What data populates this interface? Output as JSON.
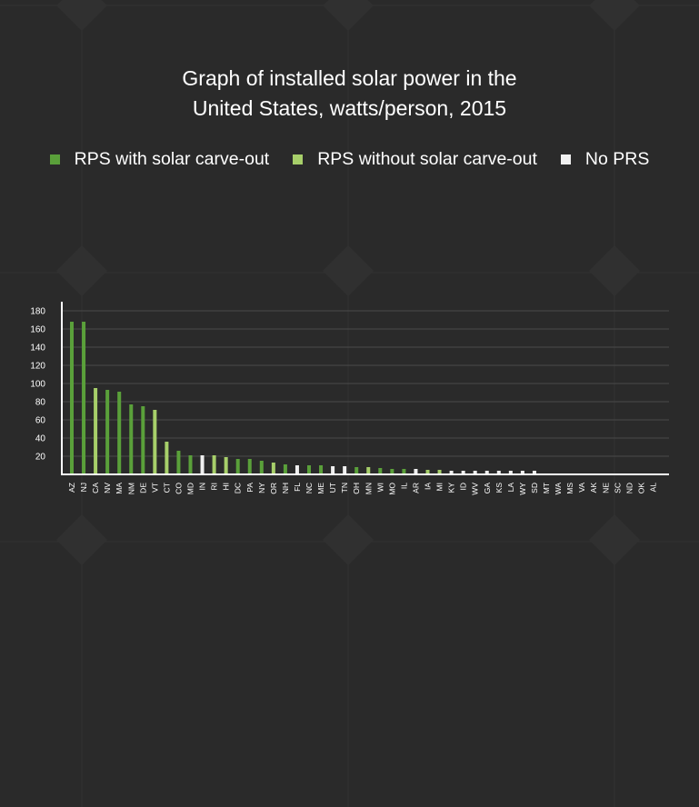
{
  "chart_data": {
    "type": "bar",
    "title_line1": "Graph of installed solar power in the",
    "title_line2": "United States, watts/person, 2015",
    "legend": [
      {
        "label": "RPS with solar carve-out",
        "color": "#5aa03a"
      },
      {
        "label": "RPS without solar carve-out",
        "color": "#a7cf6a"
      },
      {
        "label": "No PRS",
        "color": "#f0f0f0"
      }
    ],
    "xlabel": "",
    "ylabel": "",
    "ylim": [
      0,
      190
    ],
    "yticks": [
      20,
      40,
      60,
      80,
      100,
      120,
      140,
      160,
      180
    ],
    "grid": true,
    "categories": [
      "AZ",
      "NJ",
      "CA",
      "NV",
      "MA",
      "NM",
      "DE",
      "VT",
      "CT",
      "CO",
      "MD",
      "IN",
      "RI",
      "HI",
      "DC",
      "PA",
      "NY",
      "OR",
      "NH",
      "FL",
      "NC",
      "ME",
      "UT",
      "TN",
      "OH",
      "MN",
      "WI",
      "MO",
      "IL",
      "AR",
      "IA",
      "MI",
      "KY",
      "ID",
      "WV",
      "GA",
      "KS",
      "LA",
      "WY",
      "SD",
      "MT",
      "WA",
      "MS",
      "VA",
      "AK",
      "NE",
      "SC",
      "ND",
      "OK",
      "AL"
    ],
    "values": [
      168,
      168,
      95,
      93,
      91,
      77,
      75,
      71,
      36,
      26,
      21,
      21,
      21,
      19,
      17,
      17,
      15,
      13,
      11,
      10,
      10,
      10,
      9,
      9,
      8,
      8,
      7,
      6,
      6,
      6,
      5,
      5,
      4,
      4,
      4,
      4,
      4,
      4,
      4,
      4,
      0,
      0,
      0,
      0,
      0,
      0,
      0,
      0,
      0,
      0
    ],
    "series_group": [
      0,
      0,
      1,
      0,
      0,
      0,
      0,
      1,
      1,
      0,
      0,
      2,
      1,
      1,
      0,
      0,
      0,
      1,
      0,
      2,
      0,
      0,
      2,
      2,
      0,
      1,
      0,
      0,
      0,
      2,
      1,
      1,
      2,
      2,
      2,
      2,
      2,
      2,
      2,
      2,
      2,
      2,
      2,
      2,
      2,
      2,
      2,
      2,
      2,
      2
    ]
  }
}
